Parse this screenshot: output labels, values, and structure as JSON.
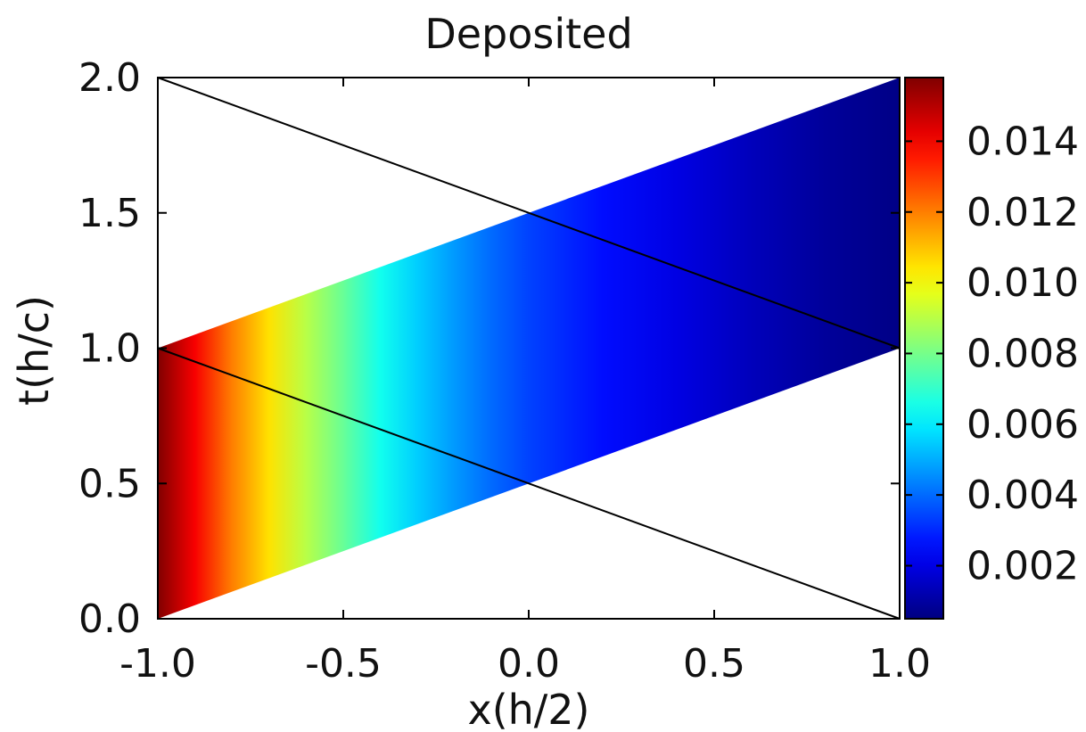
{
  "chart_data": {
    "type": "heatmap",
    "title": "Deposited",
    "xlabel": "x(h/2)",
    "ylabel": "t(h/c)",
    "xlim": [
      -1.0,
      1.0
    ],
    "ylim": [
      0.0,
      2.0
    ],
    "x_ticks": [
      "-1.0",
      "-0.5",
      "0.0",
      "0.5",
      "1.0"
    ],
    "y_ticks": [
      "0.0",
      "0.5",
      "1.0",
      "1.5",
      "2.0"
    ],
    "grid": false,
    "colormap": "jet",
    "colorbar": {
      "range": [
        0.0005,
        0.0158
      ],
      "ticks": [
        "0.002",
        "0.004",
        "0.006",
        "0.008",
        "0.010",
        "0.012",
        "0.014"
      ],
      "placement": "right"
    },
    "band": {
      "lower_edge": {
        "x": [
          -1.0,
          1.0
        ],
        "t": [
          0.0,
          1.0
        ]
      },
      "upper_edge": {
        "x": [
          -1.0,
          1.0
        ],
        "t": [
          1.0,
          2.0
        ]
      }
    },
    "value_profile": {
      "x": [
        -1.0,
        -0.9,
        -0.8,
        -0.7,
        -0.6,
        -0.5,
        -0.4,
        -0.3,
        -0.2,
        -0.1,
        0.0,
        0.2,
        0.4,
        0.6,
        0.8,
        1.0
      ],
      "values": [
        0.0158,
        0.014,
        0.012,
        0.0105,
        0.009,
        0.0078,
        0.0065,
        0.0055,
        0.0047,
        0.004,
        0.0034,
        0.0026,
        0.002,
        0.0014,
        0.0009,
        0.0006
      ]
    },
    "lines": [
      {
        "name": "",
        "x": [
          -1.0,
          1.0
        ],
        "t": [
          2.0,
          1.0
        ]
      },
      {
        "name": "",
        "x": [
          -1.0,
          1.0
        ],
        "t": [
          1.0,
          0.0
        ]
      }
    ]
  }
}
